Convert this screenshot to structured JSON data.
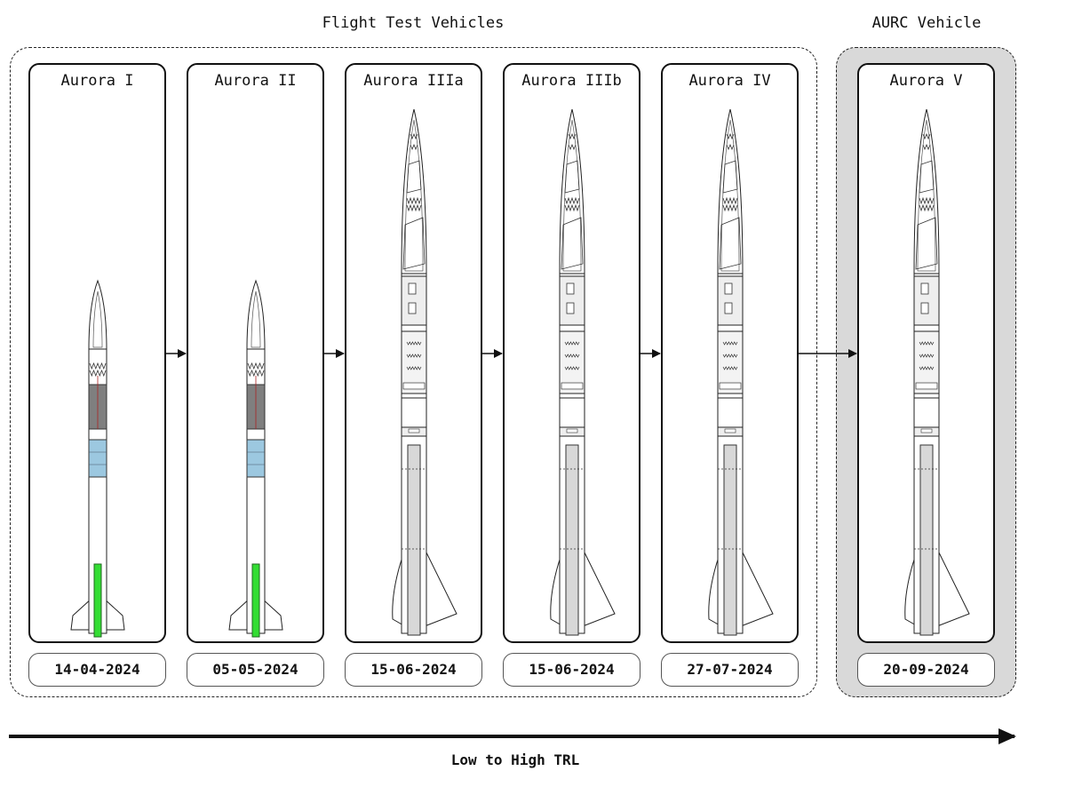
{
  "groups": {
    "flight_test": {
      "title": "Flight Test Vehicles"
    },
    "aurc": {
      "title": "AURC Vehicle"
    }
  },
  "vehicles": [
    {
      "name": "Aurora I",
      "date": "14-04-2024",
      "variant": "small"
    },
    {
      "name": "Aurora II",
      "date": "05-05-2024",
      "variant": "small"
    },
    {
      "name": "Aurora IIIa",
      "date": "15-06-2024",
      "variant": "large"
    },
    {
      "name": "Aurora IIIb",
      "date": "15-06-2024",
      "variant": "large"
    },
    {
      "name": "Aurora IV",
      "date": "27-07-2024",
      "variant": "large"
    },
    {
      "name": "Aurora V",
      "date": "20-09-2024",
      "variant": "large"
    }
  ],
  "axis": {
    "label": "Low to High TRL"
  },
  "colors": {
    "motor_green": "#33dd33",
    "avionics_blue": "#9cc8e0",
    "recovery_gray": "#7f7f7f",
    "aurc_background": "#d9d9d9",
    "motor_casing_gray": "#d8d8d8"
  }
}
